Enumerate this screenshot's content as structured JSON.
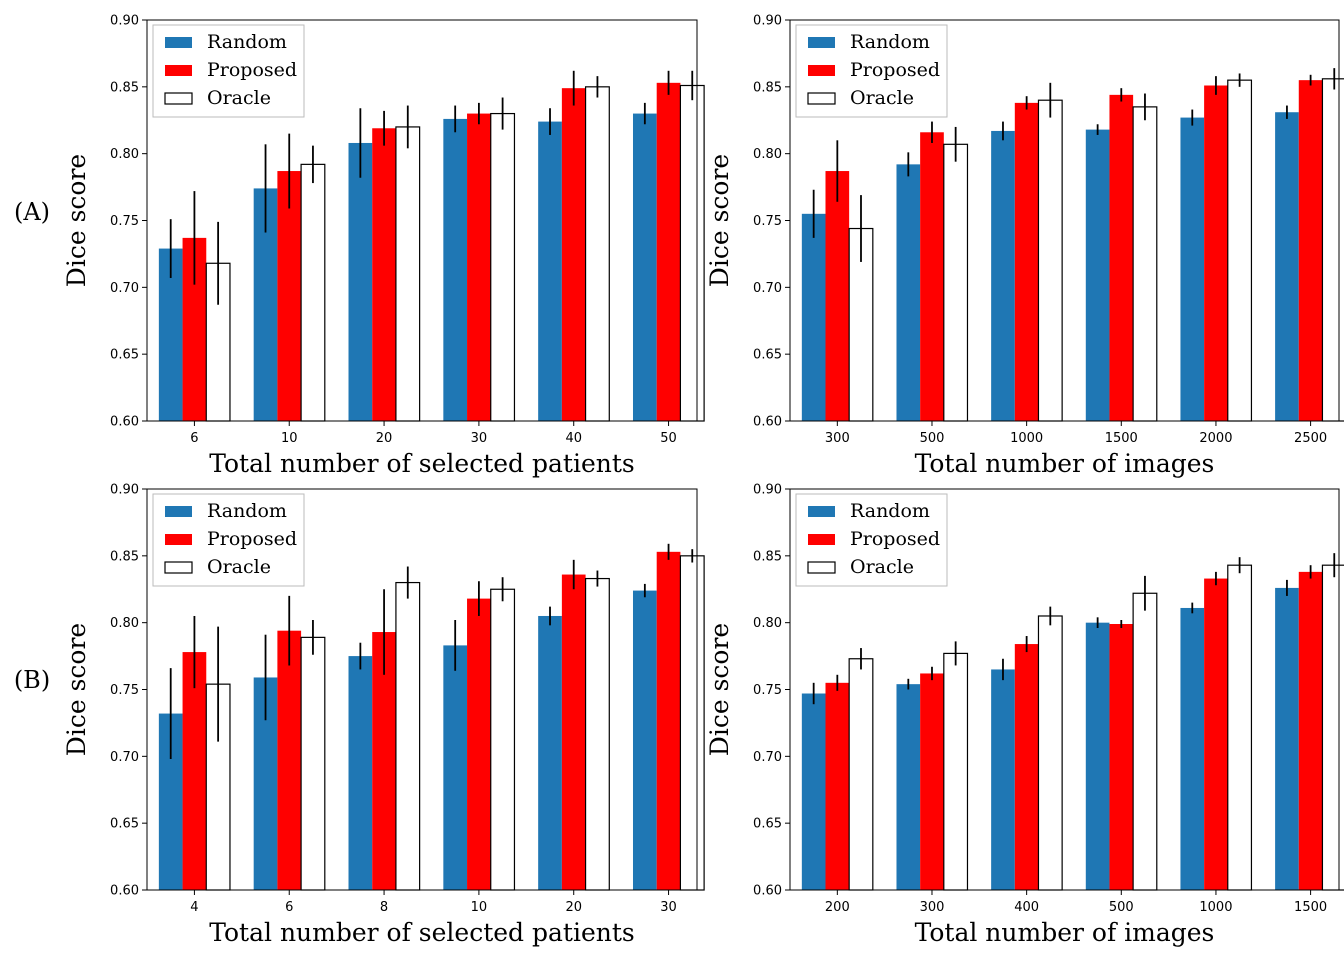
{
  "row_labels": [
    "(A)",
    "(B)"
  ],
  "colors": {
    "Random": "#1f77b4",
    "Proposed": "#ff0000",
    "Oracle": "#ffffff"
  },
  "chart_data": [
    {
      "type": "bar",
      "row": "(A)",
      "xlabel": "Total number of selected patients",
      "ylabel": "Dice score",
      "ylim": [
        0.6,
        0.9
      ],
      "yticks": [
        "0.60",
        "0.65",
        "0.70",
        "0.75",
        "0.80",
        "0.85",
        "0.90"
      ],
      "categories": [
        "6",
        "10",
        "20",
        "30",
        "40",
        "50"
      ],
      "legend": "top-left",
      "series": [
        {
          "name": "Random",
          "values": [
            0.729,
            0.774,
            0.808,
            0.826,
            0.824,
            0.83
          ],
          "errors": [
            0.022,
            0.033,
            0.026,
            0.01,
            0.01,
            0.008
          ]
        },
        {
          "name": "Proposed",
          "values": [
            0.737,
            0.787,
            0.819,
            0.83,
            0.849,
            0.853
          ],
          "errors": [
            0.035,
            0.028,
            0.013,
            0.008,
            0.013,
            0.009
          ]
        },
        {
          "name": "Oracle",
          "values": [
            0.718,
            0.792,
            0.82,
            0.83,
            0.85,
            0.851
          ],
          "errors": [
            0.031,
            0.014,
            0.016,
            0.012,
            0.008,
            0.011
          ]
        }
      ]
    },
    {
      "type": "bar",
      "row": "(A)",
      "xlabel": "Total number of images",
      "ylabel": "Dice score",
      "ylim": [
        0.6,
        0.9
      ],
      "yticks": [
        "0.60",
        "0.65",
        "0.70",
        "0.75",
        "0.80",
        "0.85",
        "0.90"
      ],
      "categories": [
        "300",
        "500",
        "1000",
        "1500",
        "2000",
        "2500"
      ],
      "legend": "top-left",
      "series": [
        {
          "name": "Random",
          "values": [
            0.755,
            0.792,
            0.817,
            0.818,
            0.827,
            0.831
          ],
          "errors": [
            0.018,
            0.009,
            0.007,
            0.004,
            0.006,
            0.005
          ]
        },
        {
          "name": "Proposed",
          "values": [
            0.787,
            0.816,
            0.838,
            0.844,
            0.851,
            0.855
          ],
          "errors": [
            0.023,
            0.008,
            0.005,
            0.005,
            0.007,
            0.004
          ]
        },
        {
          "name": "Oracle",
          "values": [
            0.744,
            0.807,
            0.84,
            0.835,
            0.855,
            0.856
          ],
          "errors": [
            0.025,
            0.013,
            0.013,
            0.01,
            0.005,
            0.008
          ]
        }
      ]
    },
    {
      "type": "bar",
      "row": "(B)",
      "xlabel": "Total number of selected patients",
      "ylabel": "Dice score",
      "ylim": [
        0.6,
        0.9
      ],
      "yticks": [
        "0.60",
        "0.65",
        "0.70",
        "0.75",
        "0.80",
        "0.85",
        "0.90"
      ],
      "categories": [
        "4",
        "6",
        "8",
        "10",
        "20",
        "30"
      ],
      "legend": "top-left",
      "series": [
        {
          "name": "Random",
          "values": [
            0.732,
            0.759,
            0.775,
            0.783,
            0.805,
            0.824
          ],
          "errors": [
            0.034,
            0.032,
            0.01,
            0.019,
            0.007,
            0.005
          ]
        },
        {
          "name": "Proposed",
          "values": [
            0.778,
            0.794,
            0.793,
            0.818,
            0.836,
            0.853
          ],
          "errors": [
            0.027,
            0.026,
            0.032,
            0.013,
            0.011,
            0.006
          ]
        },
        {
          "name": "Oracle",
          "values": [
            0.754,
            0.789,
            0.83,
            0.825,
            0.833,
            0.85
          ],
          "errors": [
            0.043,
            0.013,
            0.012,
            0.009,
            0.006,
            0.005
          ]
        }
      ]
    },
    {
      "type": "bar",
      "row": "(B)",
      "xlabel": "Total number of images",
      "ylabel": "Dice score",
      "ylim": [
        0.6,
        0.9
      ],
      "yticks": [
        "0.60",
        "0.65",
        "0.70",
        "0.75",
        "0.80",
        "0.85",
        "0.90"
      ],
      "categories": [
        "200",
        "300",
        "400",
        "500",
        "1000",
        "1500"
      ],
      "legend": "top-left",
      "series": [
        {
          "name": "Random",
          "values": [
            0.747,
            0.754,
            0.765,
            0.8,
            0.811,
            0.826
          ],
          "errors": [
            0.008,
            0.004,
            0.008,
            0.004,
            0.004,
            0.006
          ]
        },
        {
          "name": "Proposed",
          "values": [
            0.755,
            0.762,
            0.784,
            0.799,
            0.833,
            0.838
          ],
          "errors": [
            0.006,
            0.005,
            0.006,
            0.003,
            0.005,
            0.005
          ]
        },
        {
          "name": "Oracle",
          "values": [
            0.773,
            0.777,
            0.805,
            0.822,
            0.843,
            0.843
          ],
          "errors": [
            0.008,
            0.009,
            0.007,
            0.013,
            0.006,
            0.009
          ]
        }
      ]
    }
  ]
}
